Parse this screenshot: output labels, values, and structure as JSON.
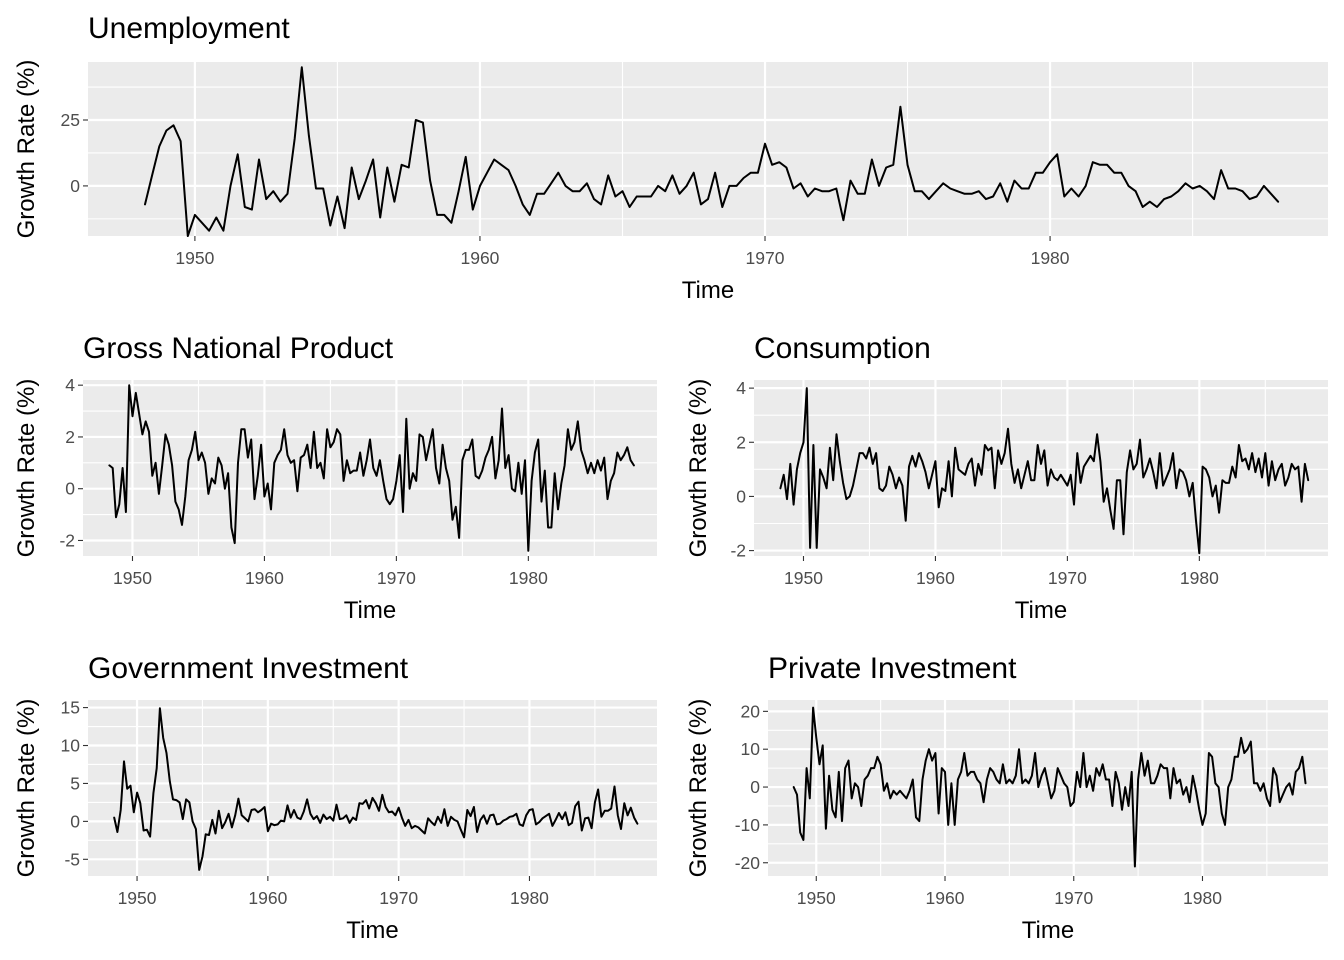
{
  "chart_data": [
    {
      "type": "line",
      "title": "Unemployment",
      "xlabel": "Time",
      "ylabel": "Growth Rate (%)",
      "xlim": [
        1946.25,
        1989.75
      ],
      "ylim": [
        -19,
        47
      ],
      "xticks": [
        1950,
        1960,
        1970,
        1980
      ],
      "yticks": [
        0,
        25
      ],
      "grid": true,
      "x_start": 1948.25,
      "x_step": 0.25,
      "values": [
        -7,
        4,
        15,
        21,
        23,
        17,
        -19,
        -11,
        -14,
        -17,
        -12,
        -17,
        0,
        12,
        -8,
        -9,
        10,
        -5,
        -2,
        -6,
        -3,
        18,
        45,
        19,
        -1,
        -1,
        -15,
        -4,
        -16,
        7,
        -5,
        2,
        10,
        -12,
        7,
        -6,
        8,
        7,
        25,
        24,
        2,
        -11,
        -11,
        -14,
        -2,
        11,
        -9,
        0,
        5,
        10,
        8,
        6,
        0,
        -7,
        -11,
        -3,
        -3,
        1,
        5,
        0,
        -2,
        -2,
        1,
        -5,
        -7,
        4,
        -4,
        -2,
        -8,
        -4,
        -4,
        -4,
        0,
        -2,
        4,
        -3,
        0,
        5,
        -7,
        -5,
        5,
        -8,
        0,
        0,
        3,
        5,
        5,
        16,
        8,
        9,
        7,
        -1,
        1,
        -4,
        -1,
        -2,
        -2,
        -1,
        -13,
        2,
        -3,
        -3,
        10,
        0,
        7,
        8,
        30,
        8,
        -2,
        -2,
        -5,
        -2,
        1,
        -1,
        -2,
        -3,
        -3,
        -2,
        -5,
        -4,
        1,
        -6,
        2,
        -1,
        -1,
        5,
        5,
        9,
        12,
        -4,
        -1,
        -4,
        0,
        9,
        8,
        8,
        5,
        5,
        0,
        -2,
        -8,
        -6,
        -8,
        -5,
        -4,
        -2,
        1,
        -1,
        0,
        -2,
        -5,
        6,
        -1,
        -1,
        -2,
        -5,
        -4,
        0,
        -3,
        -6
      ]
    },
    {
      "type": "line",
      "title": "Gross National Product",
      "xlabel": "Time",
      "ylabel": "Growth Rate (%)",
      "xlim": [
        1946.25,
        1989.75
      ],
      "ylim": [
        -2.6,
        4.2
      ],
      "xticks": [
        1950,
        1960,
        1970,
        1980
      ],
      "yticks": [
        -2,
        0,
        2,
        4
      ],
      "grid": true,
      "x_start": 1948.25,
      "x_step": 0.25,
      "values": [
        0.9,
        0.8,
        -1.1,
        -0.6,
        0.8,
        -0.9,
        4.0,
        2.8,
        3.7,
        2.9,
        2.1,
        2.6,
        2.2,
        0.5,
        1.0,
        -0.2,
        0.9,
        2.1,
        1.7,
        0.9,
        -0.5,
        -0.8,
        -1.4,
        -0.3,
        1.1,
        1.5,
        2.2,
        1.1,
        1.4,
        1.0,
        -0.2,
        0.4,
        0.2,
        1.2,
        0.9,
        0.0,
        0.6,
        -1.5,
        -2.1,
        1.0,
        2.3,
        2.3,
        1.2,
        1.9,
        -0.4,
        0.5,
        1.7,
        -0.3,
        0.2,
        -0.8,
        1.0,
        1.3,
        1.5,
        2.3,
        1.3,
        1.0,
        1.1,
        -0.1,
        1.2,
        1.3,
        1.7,
        0.8,
        2.2,
        0.8,
        1.0,
        0.4,
        2.3,
        1.6,
        1.8,
        2.3,
        2.1,
        0.3,
        1.1,
        0.6,
        0.7,
        0.7,
        1.4,
        0.5,
        1.1,
        1.9,
        0.8,
        0.5,
        1.1,
        0.3,
        -0.4,
        -0.6,
        -0.4,
        0.3,
        1.3,
        -0.9,
        2.7,
        0.0,
        0.6,
        0.3,
        2.1,
        2.0,
        1.1,
        1.7,
        2.3,
        0.8,
        0.2,
        1.7,
        0.8,
        0.3,
        -1.2,
        -0.7,
        -1.9,
        1.1,
        1.5,
        1.5,
        1.9,
        0.5,
        0.4,
        0.7,
        1.2,
        1.5,
        2.0,
        0.4,
        1.1,
        3.1,
        0.8,
        1.3,
        0.0,
        -0.1,
        1.0,
        -0.2,
        1.1,
        -2.4,
        0.3,
        1.4,
        1.9,
        -0.5,
        0.7,
        -1.5,
        -1.5,
        0.6,
        -0.8,
        0.2,
        0.9,
        2.3,
        1.5,
        1.8,
        2.6,
        1.5,
        1.1,
        0.6,
        1.0,
        0.6,
        1.1,
        0.7,
        1.2,
        -0.4,
        0.3,
        0.6,
        1.4,
        1.1,
        1.3,
        1.6,
        1.1,
        0.9
      ]
    },
    {
      "type": "line",
      "title": "Consumption",
      "xlabel": "Time",
      "ylabel": "Growth Rate (%)",
      "xlim": [
        1946.25,
        1989.75
      ],
      "ylim": [
        -2.2,
        4.3
      ],
      "xticks": [
        1950,
        1960,
        1970,
        1980
      ],
      "yticks": [
        -2,
        0,
        2,
        4
      ],
      "grid": true,
      "x_start": 1948.25,
      "x_step": 0.25,
      "values": [
        0.3,
        0.8,
        -0.1,
        1.2,
        -0.3,
        1.0,
        1.6,
        2.0,
        4.0,
        -1.9,
        1.9,
        -1.9,
        1.0,
        0.7,
        0.3,
        1.8,
        0.6,
        2.3,
        1.3,
        0.5,
        -0.1,
        0.0,
        0.4,
        1.0,
        1.6,
        1.6,
        1.4,
        1.8,
        1.2,
        1.6,
        0.3,
        0.2,
        0.4,
        1.1,
        0.8,
        0.3,
        0.7,
        0.4,
        -0.9,
        1.1,
        1.5,
        1.1,
        1.6,
        1.3,
        0.9,
        0.3,
        0.8,
        1.3,
        -0.4,
        0.3,
        0.2,
        1.3,
        0.0,
        1.8,
        1.0,
        0.9,
        0.8,
        1.2,
        1.4,
        0.4,
        1.2,
        0.8,
        1.9,
        1.7,
        1.8,
        0.3,
        1.7,
        1.2,
        1.6,
        2.5,
        1.2,
        0.5,
        1.0,
        0.3,
        0.8,
        1.3,
        0.6,
        0.6,
        1.9,
        1.2,
        1.7,
        0.4,
        1.0,
        0.7,
        0.6,
        0.8,
        0.6,
        0.4,
        0.8,
        -0.3,
        1.6,
        0.5,
        1.1,
        1.3,
        1.5,
        1.3,
        2.3,
        1.3,
        -0.2,
        0.3,
        -0.5,
        -1.2,
        0.6,
        0.6,
        -1.4,
        0.9,
        1.7,
        1.0,
        1.2,
        2.1,
        0.7,
        1.0,
        1.4,
        0.9,
        0.3,
        1.6,
        0.4,
        0.7,
        1.0,
        1.6,
        0.3,
        1.0,
        0.9,
        0.6,
        0.0,
        0.5,
        -0.9,
        -2.1,
        1.1,
        1.0,
        0.7,
        0.0,
        0.4,
        -0.6,
        0.6,
        0.5,
        0.5,
        1.1,
        0.7,
        1.9,
        1.3,
        1.4,
        1.0,
        1.6,
        0.9,
        1.4,
        0.7,
        1.6,
        0.4,
        1.3,
        0.6,
        1.0,
        1.2,
        0.4,
        0.7,
        1.2,
        1.0,
        1.1,
        -0.2,
        1.2,
        0.6
      ]
    },
    {
      "type": "line",
      "title": "Government Investment",
      "xlabel": "Time",
      "ylabel": "Growth Rate (%)",
      "xlim": [
        1946.25,
        1989.75
      ],
      "ylim": [
        -7.2,
        16.0
      ],
      "xticks": [
        1950,
        1960,
        1970,
        1980
      ],
      "yticks": [
        -5,
        0,
        5,
        10,
        15
      ],
      "grid": true,
      "x_start": 1948.25,
      "x_step": 0.25,
      "values": [
        0.5,
        -1.4,
        1.5,
        7.9,
        4.3,
        4.7,
        1.2,
        3.8,
        2.4,
        -1.2,
        -1.1,
        -2.0,
        3.7,
        7.0,
        14.9,
        11.0,
        9.0,
        5.3,
        2.9,
        2.8,
        2.5,
        0.3,
        2.9,
        2.5,
        0.0,
        -1.0,
        -6.4,
        -4.6,
        -1.7,
        -1.8,
        0.2,
        -1.6,
        1.4,
        -0.9,
        -0.1,
        1.0,
        -0.8,
        0.8,
        3.0,
        0.8,
        0.4,
        0.0,
        1.5,
        1.6,
        1.2,
        1.5,
        1.9,
        -1.3,
        -0.3,
        -0.5,
        -0.4,
        0.1,
        0.0,
        2.1,
        0.5,
        1.5,
        0.5,
        0.3,
        1.3,
        2.9,
        1.0,
        0.3,
        0.7,
        -0.2,
        0.9,
        0.3,
        0.6,
        0.1,
        2.2,
        0.3,
        0.4,
        0.8,
        -0.2,
        0.5,
        0.2,
        2.4,
        2.3,
        2.8,
        1.7,
        3.1,
        2.4,
        1.4,
        3.5,
        1.9,
        1.2,
        1.3,
        0.8,
        1.8,
        0.5,
        -0.6,
        0.2,
        -0.9,
        -0.6,
        -0.8,
        -1.2,
        -1.6,
        0.4,
        -0.1,
        -0.5,
        0.6,
        -0.2,
        1.6,
        -0.6,
        0.6,
        0.2,
        0.0,
        -1.1,
        -2.1,
        1.5,
        0.7,
        1.9,
        -1.4,
        0.2,
        0.8,
        -0.3,
        0.8,
        0.9,
        -0.4,
        -0.3,
        0.1,
        0.3,
        0.6,
        0.7,
        1.0,
        -0.4,
        -0.6,
        0.8,
        1.5,
        1.6,
        -0.4,
        -0.1,
        0.4,
        0.7,
        1.0,
        -0.6,
        0.2,
        1.1,
        0.3,
        1.2,
        -0.5,
        -0.2,
        2.0,
        2.6,
        -1.2,
        0.4,
        0.5,
        -0.9,
        2.5,
        4.2,
        0.6,
        1.4,
        1.4,
        1.7,
        4.6,
        0.8,
        -1.0,
        2.4,
        0.8,
        1.8,
        0.5,
        -0.3
      ]
    },
    {
      "type": "line",
      "title": "Private Investment",
      "xlabel": "Time",
      "ylabel": "Growth Rate (%)",
      "xlim": [
        1946.25,
        1989.75
      ],
      "ylim": [
        -23.5,
        23.0
      ],
      "xticks": [
        1950,
        1960,
        1970,
        1980
      ],
      "yticks": [
        -20,
        -10,
        0,
        10,
        20
      ],
      "grid": true,
      "x_start": 1948.25,
      "x_step": 0.25,
      "values": [
        0,
        -2,
        -12,
        -14,
        5,
        -3,
        21,
        13,
        6,
        11,
        -11,
        3,
        -6,
        -8,
        4,
        -9,
        5,
        7,
        -3,
        1,
        0,
        -5,
        2,
        3,
        5,
        5,
        8,
        6,
        -1,
        1,
        -3,
        -1,
        -2,
        -1,
        -2,
        -3,
        -1,
        2,
        -8,
        -9,
        2,
        7,
        10,
        7,
        9,
        -7,
        5,
        4,
        -10,
        1,
        -10,
        2,
        4,
        9,
        3,
        4,
        4,
        2,
        1,
        -4,
        2,
        5,
        4,
        2,
        1,
        6,
        1,
        2,
        1,
        3,
        10,
        1,
        2,
        1,
        3,
        9,
        0,
        3,
        5,
        1,
        -3,
        -1,
        5,
        3,
        1,
        0,
        -5,
        -4,
        4,
        0,
        9,
        0,
        3,
        -1,
        5,
        3,
        6,
        2,
        2,
        -5,
        4,
        1,
        -6,
        0,
        -5,
        4,
        -21,
        2,
        9,
        3,
        7,
        1,
        1,
        3,
        6,
        5,
        5,
        -3,
        5,
        1,
        2,
        -2,
        0,
        -4,
        3,
        -1,
        -6,
        -10,
        -7,
        9,
        8,
        1,
        0,
        -7,
        -10,
        0,
        2,
        8,
        8,
        13,
        9,
        10,
        12,
        1,
        1,
        -1,
        1,
        -3,
        -5,
        5,
        3,
        -4,
        -2,
        0,
        1,
        -2,
        4,
        5,
        8,
        1
      ]
    }
  ]
}
